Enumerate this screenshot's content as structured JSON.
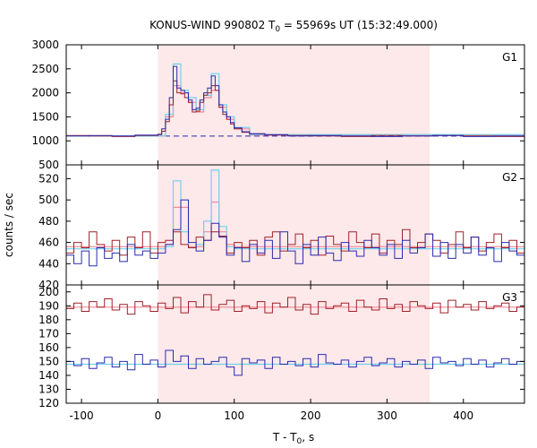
{
  "chart_data": {
    "type": "line",
    "title": "KONUS-WIND 990802 T₀ = 55969s UT (15:32:49.000)",
    "title_parts": [
      "KONUS-WIND 990802 T",
      "0",
      " = 55969s UT (15:32:49.000)"
    ],
    "xlabel_parts": [
      "T - T",
      "0",
      ", s"
    ],
    "ylabel": "counts / sec",
    "xlim": [
      -120,
      480
    ],
    "xticks": [
      -100,
      0,
      100,
      200,
      300,
      400
    ],
    "xtick_labels": [
      "-100",
      "0",
      "100",
      "200",
      "300",
      "400"
    ],
    "shaded_interval": [
      0,
      356
    ],
    "colors": {
      "shade": "#fde9ea",
      "red_series": "#a0202a",
      "blue_series": "#2a2ab0",
      "pink_fit": "#f08a96",
      "cyan_fit": "#70d0ec",
      "bg_line": "#2a2ab0"
    },
    "panels": [
      {
        "label": "G1",
        "ylim": [
          500,
          3000
        ],
        "yticks": [
          500,
          1000,
          1500,
          2000,
          2500,
          3000
        ],
        "ytick_labels": [
          "500",
          "1000",
          "1500",
          "2000",
          "2500",
          "3000"
        ],
        "background_level": 1100,
        "series": [
          {
            "role": "red",
            "x": [
              -120,
              -90,
              -60,
              -30,
              0,
              5,
              10,
              15,
              20,
              25,
              30,
              35,
              40,
              45,
              50,
              55,
              60,
              65,
              70,
              75,
              80,
              85,
              90,
              95,
              100,
              110,
              120,
              140,
              170,
              200,
              240,
              280,
              320,
              360,
              400,
              440,
              480
            ],
            "values": [
              1110,
              1100,
              1090,
              1110,
              1140,
              1200,
              1400,
              1750,
              2250,
              2000,
              1980,
              1900,
              1800,
              1600,
              1620,
              1800,
              1950,
              2000,
              2150,
              2050,
              1700,
              1550,
              1450,
              1350,
              1250,
              1180,
              1150,
              1120,
              1110,
              1100,
              1090,
              1110,
              1100,
              1110,
              1100,
              1090,
              1100
            ]
          },
          {
            "role": "blue",
            "x": [
              -120,
              -90,
              -60,
              -30,
              0,
              5,
              10,
              15,
              20,
              25,
              30,
              35,
              40,
              45,
              50,
              55,
              60,
              65,
              70,
              75,
              80,
              85,
              90,
              95,
              100,
              110,
              120,
              140,
              170,
              200,
              240,
              280,
              320,
              360,
              400,
              440,
              480
            ],
            "values": [
              1100,
              1110,
              1100,
              1120,
              1130,
              1250,
              1450,
              1900,
              2550,
              2100,
              2050,
              2000,
              1850,
              1650,
              1680,
              1850,
              2000,
              2100,
              2350,
              2150,
              1750,
              1600,
              1500,
              1380,
              1270,
              1190,
              1150,
              1130,
              1100,
              1110,
              1100,
              1090,
              1100,
              1110,
              1090,
              1100,
              1110
            ]
          },
          {
            "role": "pink",
            "x": [
              -120,
              0,
              10,
              20,
              30,
              40,
              50,
              60,
              70,
              80,
              90,
              100,
              120,
              480
            ],
            "values": [
              1100,
              1100,
              1500,
              2150,
              2000,
              1800,
              1600,
              1900,
              2050,
              1700,
              1450,
              1250,
              1120,
              1100
            ]
          },
          {
            "role": "cyan",
            "x": [
              -120,
              0,
              10,
              20,
              30,
              40,
              50,
              60,
              70,
              80,
              90,
              100,
              120,
              480
            ],
            "values": [
              1100,
              1100,
              1550,
              2600,
              2050,
              1900,
              1650,
              1950,
              2400,
              1750,
              1500,
              1280,
              1130,
              1100
            ]
          }
        ]
      },
      {
        "label": "G2",
        "ylim": [
          420,
          533
        ],
        "yticks": [
          420,
          440,
          460,
          480,
          500,
          520
        ],
        "ytick_labels": [
          "420",
          "440",
          "460",
          "480",
          "500",
          "520"
        ],
        "background_level": 455,
        "series": [
          {
            "role": "red",
            "x": [
              -120,
              -110,
              -100,
              -90,
              -80,
              -70,
              -60,
              -50,
              -40,
              -30,
              -20,
              -10,
              0,
              10,
              20,
              30,
              40,
              50,
              60,
              70,
              80,
              90,
              100,
              110,
              120,
              130,
              140,
              150,
              160,
              170,
              180,
              190,
              200,
              210,
              220,
              230,
              240,
              250,
              260,
              270,
              280,
              290,
              300,
              310,
              320,
              330,
              340,
              350,
              360,
              370,
              380,
              390,
              400,
              410,
              420,
              430,
              440,
              450,
              460,
              470,
              480
            ],
            "values": [
              450,
              460,
              455,
              470,
              458,
              452,
              462,
              448,
              465,
              455,
              470,
              450,
              460,
              462,
              470,
              458,
              455,
              465,
              462,
              470,
              466,
              450,
              460,
              455,
              462,
              448,
              465,
              470,
              452,
              458,
              468,
              455,
              462,
              448,
              466,
              458,
              452,
              470,
              460,
              455,
              468,
              450,
              462,
              458,
              472,
              455,
              460,
              468,
              462,
              450,
              458,
              470,
              455,
              465,
              452,
              460,
              468,
              455,
              462,
              450,
              458
            ]
          },
          {
            "role": "blue",
            "x": [
              -120,
              -110,
              -100,
              -90,
              -80,
              -70,
              -60,
              -50,
              -40,
              -30,
              -20,
              -10,
              0,
              10,
              20,
              30,
              40,
              50,
              60,
              70,
              80,
              90,
              100,
              110,
              120,
              130,
              140,
              150,
              160,
              170,
              180,
              190,
              200,
              210,
              220,
              230,
              240,
              250,
              260,
              270,
              280,
              290,
              300,
              310,
              320,
              330,
              340,
              350,
              360,
              370,
              380,
              390,
              400,
              410,
              420,
              430,
              440,
              450,
              460,
              470,
              480
            ],
            "values": [
              448,
              440,
              452,
              438,
              455,
              445,
              450,
              442,
              458,
              448,
              452,
              445,
              450,
              458,
              472,
              500,
              460,
              452,
              462,
              478,
              465,
              448,
              455,
              442,
              458,
              450,
              462,
              445,
              470,
              452,
              440,
              458,
              448,
              465,
              450,
              443,
              460,
              452,
              447,
              462,
              455,
              448,
              458,
              445,
              462,
              450,
              455,
              468,
              447,
              460,
              445,
              458,
              450,
              465,
              448,
              455,
              442,
              460,
              452,
              448,
              455
            ]
          },
          {
            "role": "pink",
            "x": [
              -120,
              0,
              10,
              20,
              30,
              40,
              50,
              60,
              70,
              80,
              90,
              100,
              480
            ],
            "values": [
              456,
              456,
              458,
              493,
              493,
              456,
              456,
              470,
              498,
              470,
              458,
              456,
              456
            ]
          },
          {
            "role": "cyan",
            "x": [
              -120,
              0,
              10,
              20,
              30,
              40,
              50,
              60,
              70,
              80,
              90,
              100,
              480
            ],
            "values": [
              454,
              454,
              456,
              518,
              470,
              455,
              458,
              480,
              528,
              475,
              456,
              454,
              454
            ]
          }
        ]
      },
      {
        "label": "G3",
        "ylim": [
          120,
          205
        ],
        "yticks": [
          120,
          130,
          140,
          150,
          160,
          170,
          180,
          190,
          200
        ],
        "ytick_labels": [
          "120",
          "130",
          "140",
          "150",
          "160",
          "170",
          "180",
          "190",
          "200"
        ],
        "background_level": 148,
        "series": [
          {
            "role": "red",
            "x": [
              -120,
              -110,
              -100,
              -90,
              -80,
              -70,
              -60,
              -50,
              -40,
              -30,
              -20,
              -10,
              0,
              10,
              20,
              30,
              40,
              50,
              60,
              70,
              80,
              90,
              100,
              110,
              120,
              130,
              140,
              150,
              160,
              170,
              180,
              190,
              200,
              210,
              220,
              230,
              240,
              250,
              260,
              270,
              280,
              290,
              300,
              310,
              320,
              330,
              340,
              350,
              360,
              370,
              380,
              390,
              400,
              410,
              420,
              430,
              440,
              450,
              460,
              470,
              480
            ],
            "values": [
              188,
              192,
              186,
              193,
              189,
              195,
              187,
              191,
              184,
              193,
              190,
              186,
              192,
              188,
              196,
              185,
              193,
              189,
              198,
              187,
              191,
              194,
              186,
              190,
              188,
              193,
              185,
              192,
              189,
              196,
              187,
              191,
              184,
              193,
              188,
              190,
              192,
              186,
              194,
              189,
              187,
              195,
              188,
              191,
              186,
              193,
              190,
              188,
              192,
              185,
              194,
              189,
              191,
              187,
              193,
              188,
              190,
              192,
              186,
              189,
              191
            ]
          },
          {
            "role": "blue",
            "x": [
              -120,
              -110,
              -100,
              -90,
              -80,
              -70,
              -60,
              -50,
              -40,
              -30,
              -20,
              -10,
              0,
              10,
              20,
              30,
              40,
              50,
              60,
              70,
              80,
              90,
              100,
              110,
              120,
              130,
              140,
              150,
              160,
              170,
              180,
              190,
              200,
              210,
              220,
              230,
              240,
              250,
              260,
              270,
              280,
              290,
              300,
              310,
              320,
              330,
              340,
              350,
              360,
              370,
              380,
              390,
              400,
              410,
              420,
              430,
              440,
              450,
              460,
              470,
              480
            ],
            "values": [
              150,
              147,
              152,
              145,
              149,
              153,
              146,
              150,
              144,
              155,
              148,
              151,
              146,
              158,
              150,
              154,
              145,
              152,
              148,
              150,
              153,
              146,
              140,
              152,
              149,
              151,
              145,
              153,
              148,
              150,
              147,
              152,
              146,
              155,
              149,
              148,
              151,
              146,
              150,
              153,
              147,
              149,
              152,
              146,
              150,
              148,
              151,
              145,
              153,
              149,
              150,
              147,
              152,
              148,
              151,
              146,
              149,
              152,
              148,
              150,
              147
            ]
          },
          {
            "role": "pink",
            "x": [
              -120,
              480
            ],
            "values": [
              189,
              189
            ]
          },
          {
            "role": "cyan",
            "x": [
              -120,
              480
            ],
            "values": [
              148,
              148
            ]
          }
        ]
      }
    ]
  }
}
